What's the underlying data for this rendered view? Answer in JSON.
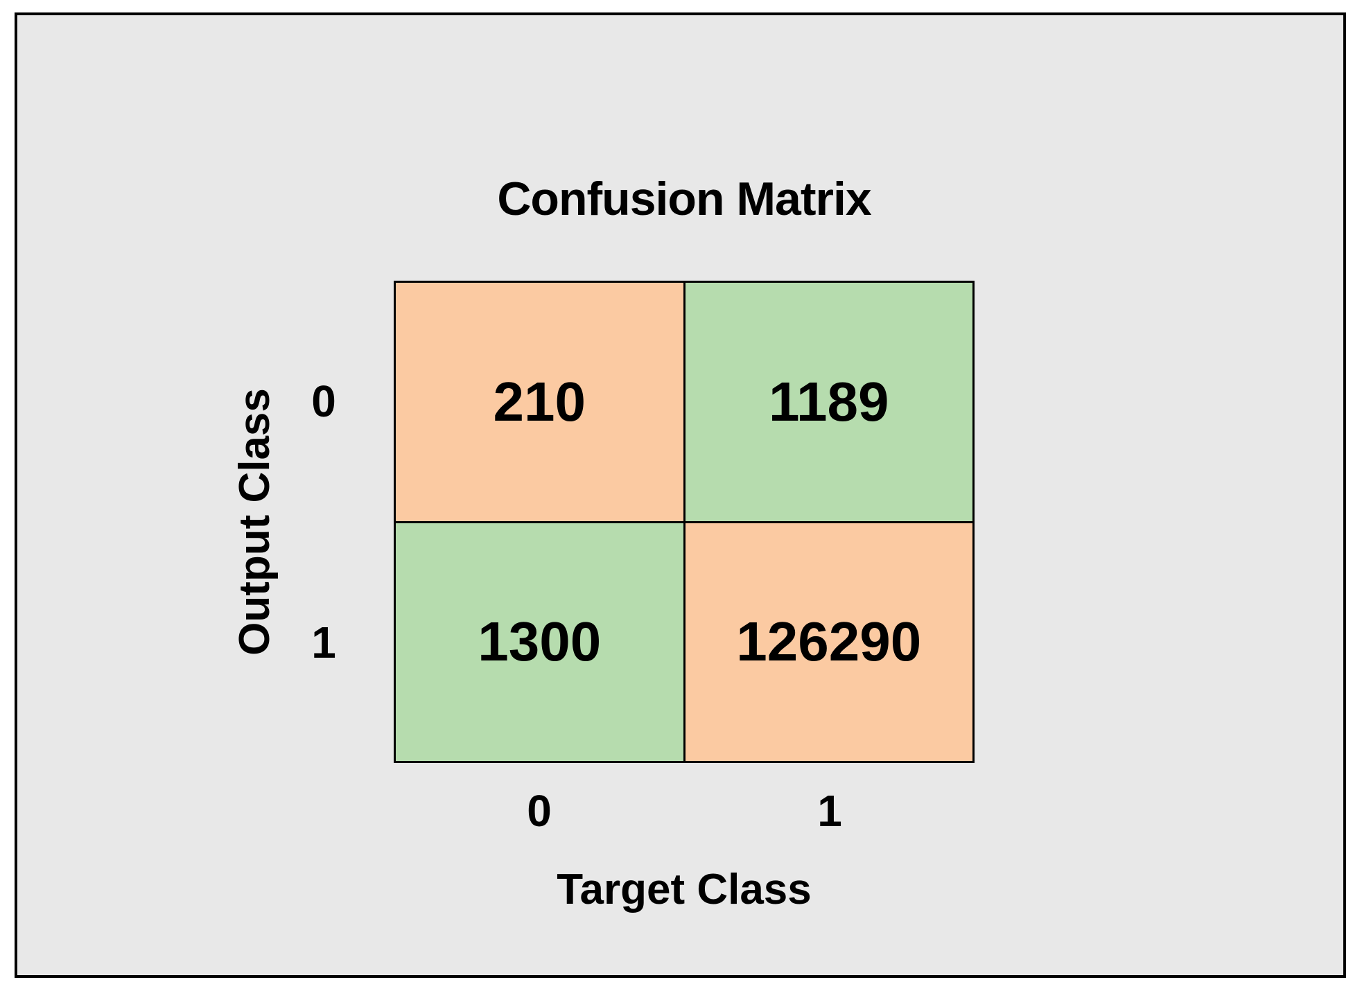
{
  "chart_data": {
    "type": "heatmap",
    "title": "Confusion Matrix",
    "xlabel": "Target Class",
    "ylabel": "Output Class",
    "x_categories": [
      "0",
      "1"
    ],
    "y_categories": [
      "0",
      "1"
    ],
    "matrix": [
      [
        210,
        1189
      ],
      [
        1300,
        126290
      ]
    ],
    "cells": [
      {
        "row": "0",
        "col": "0",
        "value": "210",
        "color_key": "orange"
      },
      {
        "row": "0",
        "col": "1",
        "value": "1189",
        "color_key": "green"
      },
      {
        "row": "1",
        "col": "0",
        "value": "1300",
        "color_key": "green"
      },
      {
        "row": "1",
        "col": "1",
        "value": "126290",
        "color_key": "orange"
      }
    ],
    "colors": {
      "orange": "#FBCAA2",
      "green": "#B6DCAE",
      "background": "#E8E8E8",
      "border": "#000000"
    },
    "legend": "none",
    "grid": "2x2",
    "axes_note": "rows = Output Class, columns = Target Class"
  }
}
